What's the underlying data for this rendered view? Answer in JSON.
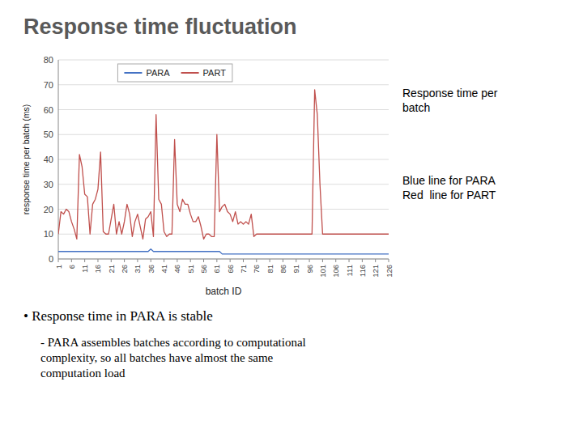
{
  "chart_data": {
    "type": "line",
    "title": "Response time fluctuation",
    "x_label": "batch ID",
    "y_label": "response time per batch (ms)",
    "annotations": [
      "Response time per\nbatch",
      "Blue line for PARA\nRed  line for PART",
      "• Response time in PARA is stable",
      "- PARA assembles batches according to computational\ncomplexity, so all batches have almost the same\ncomputation load"
    ],
    "xlim": [
      1,
      126
    ],
    "xticks": [
      1,
      6,
      11,
      16,
      21,
      26,
      31,
      36,
      41,
      46,
      51,
      56,
      61,
      66,
      71,
      76,
      81,
      86,
      91,
      96,
      101,
      106,
      111,
      116,
      121,
      126
    ],
    "ylim": [
      0,
      80
    ],
    "yticks": [
      0,
      10,
      20,
      30,
      40,
      50,
      60,
      70,
      80
    ],
    "grid": true,
    "legend": "upper left",
    "x": [
      1,
      2,
      3,
      4,
      5,
      6,
      7,
      8,
      9,
      10,
      11,
      12,
      13,
      14,
      15,
      16,
      17,
      18,
      19,
      20,
      21,
      22,
      23,
      24,
      25,
      26,
      27,
      28,
      29,
      30,
      31,
      32,
      33,
      34,
      35,
      36,
      37,
      38,
      39,
      40,
      41,
      42,
      43,
      44,
      45,
      46,
      47,
      48,
      49,
      50,
      51,
      52,
      53,
      54,
      55,
      56,
      57,
      58,
      59,
      60,
      61,
      62,
      63,
      64,
      65,
      66,
      67,
      68,
      69,
      70,
      71,
      72,
      73,
      74,
      75,
      76,
      77,
      78,
      79,
      80,
      81,
      82,
      83,
      84,
      85,
      86,
      87,
      88,
      89,
      90,
      91,
      92,
      93,
      94,
      95,
      96,
      97,
      98,
      99,
      100,
      101,
      102,
      103,
      104,
      105,
      106,
      107,
      108,
      109,
      110,
      111,
      112,
      113,
      114,
      115,
      116,
      117,
      118,
      119,
      120,
      121,
      122,
      123,
      124,
      125,
      126
    ],
    "series": [
      {
        "name": "PARA",
        "color": "#4472C4",
        "values": [
          3,
          3,
          3,
          3,
          3,
          3,
          3,
          3,
          3,
          3,
          3,
          3,
          3,
          3,
          3,
          3,
          3,
          3,
          3,
          3,
          3,
          3,
          3,
          3,
          3,
          3,
          3,
          3,
          3,
          3,
          3,
          3,
          3,
          3,
          3,
          4,
          3,
          3,
          3,
          3,
          3,
          3,
          3,
          3,
          3,
          3,
          3,
          3,
          3,
          3,
          3,
          3,
          3,
          3,
          3,
          3,
          3,
          3,
          3,
          3,
          3,
          3,
          2,
          2,
          2,
          2,
          2,
          2,
          2,
          2,
          2,
          2,
          2,
          2,
          2,
          2,
          2,
          2,
          2,
          2,
          2,
          2,
          2,
          2,
          2,
          2,
          2,
          2,
          2,
          2,
          2,
          2,
          2,
          2,
          2,
          2,
          2,
          2,
          2,
          2,
          2,
          2,
          2,
          2,
          2,
          2,
          2,
          2,
          2,
          2,
          2,
          2,
          2,
          2,
          2,
          2,
          2,
          2,
          2,
          2,
          2,
          2,
          2,
          2,
          2,
          2
        ]
      },
      {
        "name": "PART",
        "color": "#C0504D",
        "values": [
          10,
          19,
          18,
          20,
          19,
          15,
          12,
          8,
          42,
          37,
          26,
          25,
          10,
          22,
          24,
          28,
          43,
          11,
          10,
          10,
          16,
          22,
          10,
          15,
          10,
          15,
          22,
          18,
          9,
          15,
          18,
          13,
          8,
          16,
          17,
          19,
          9,
          58,
          24,
          22,
          11,
          9,
          10,
          10,
          48,
          22,
          19,
          24,
          22,
          22,
          18,
          15,
          15,
          17,
          13,
          8,
          10,
          10,
          9,
          9,
          50,
          19,
          21,
          22,
          19,
          18,
          15,
          19,
          14,
          15,
          14,
          15,
          14,
          18,
          9,
          10,
          10,
          10,
          10,
          10,
          10,
          10,
          10,
          10,
          10,
          10,
          10,
          10,
          10,
          10,
          10,
          10,
          10,
          10,
          10,
          10,
          10,
          68,
          58,
          30,
          10,
          10,
          10,
          10,
          10,
          10,
          10,
          10,
          10,
          10,
          10,
          10,
          10,
          10,
          10,
          10,
          10,
          10,
          10,
          10,
          10,
          10,
          10,
          10,
          10,
          10
        ]
      }
    ]
  }
}
